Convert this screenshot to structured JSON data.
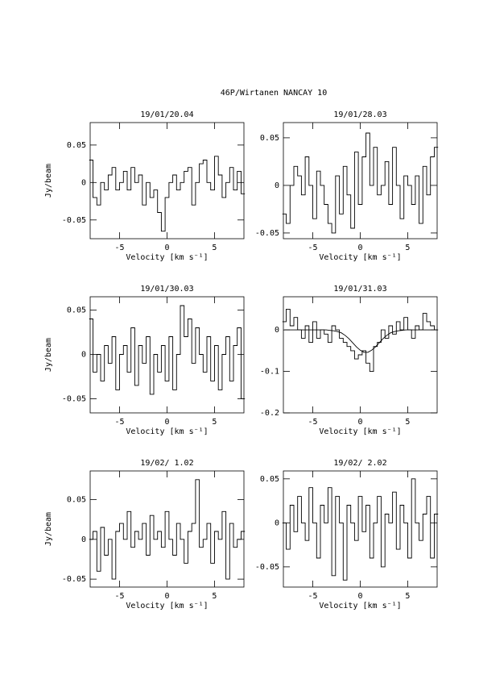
{
  "title": "46P/Wirtanen   NANCAY     10",
  "chart_data": [
    {
      "type": "line",
      "title": "19/01/20.04",
      "xlabel": "Velocity [km s⁻¹]",
      "ylabel": "Jy/beam",
      "x": [
        -8,
        -7.6,
        -7.2,
        -6.8,
        -6.4,
        -6,
        -5.6,
        -5.2,
        -4.8,
        -4.4,
        -4,
        -3.6,
        -3.2,
        -2.8,
        -2.4,
        -2,
        -1.6,
        -1.2,
        -0.8,
        -0.4,
        0,
        0.4,
        0.8,
        1.2,
        1.6,
        2,
        2.4,
        2.8,
        3.2,
        3.6,
        4,
        4.4,
        4.8,
        5.2,
        5.6,
        6,
        6.4,
        6.8,
        7.2,
        7.6,
        8
      ],
      "series": [
        {
          "color": "#000000",
          "drawstyle": "steps-mid",
          "values": [
            0.03,
            -0.02,
            -0.03,
            0.0,
            -0.01,
            0.01,
            0.02,
            -0.01,
            0.0,
            0.015,
            -0.01,
            0.02,
            0.0,
            0.01,
            -0.03,
            0.0,
            -0.02,
            -0.01,
            -0.04,
            -0.065,
            -0.02,
            0.0,
            0.01,
            -0.01,
            0.0,
            0.015,
            0.02,
            -0.03,
            0.0,
            0.025,
            0.03,
            0.0,
            -0.01,
            0.035,
            0.01,
            -0.02,
            0.0,
            0.02,
            -0.01,
            0.015,
            -0.015
          ]
        }
      ],
      "xlim": [
        -8.1,
        8.1
      ],
      "xticks": [
        -5,
        0,
        5
      ],
      "ylim": [
        -0.075,
        0.08
      ],
      "yticks": [
        -0.05,
        0,
        0.05
      ]
    },
    {
      "type": "line",
      "title": "19/01/28.03",
      "xlabel": "Velocity [km s⁻¹]",
      "x": [
        -8,
        -7.6,
        -7.2,
        -6.8,
        -6.4,
        -6,
        -5.6,
        -5.2,
        -4.8,
        -4.4,
        -4,
        -3.6,
        -3.2,
        -2.8,
        -2.4,
        -2,
        -1.6,
        -1.2,
        -0.8,
        -0.4,
        0,
        0.4,
        0.8,
        1.2,
        1.6,
        2,
        2.4,
        2.8,
        3.2,
        3.6,
        4,
        4.4,
        4.8,
        5.2,
        5.6,
        6,
        6.4,
        6.8,
        7.2,
        7.6,
        8
      ],
      "series": [
        {
          "color": "#000000",
          "drawstyle": "steps-mid",
          "values": [
            -0.03,
            -0.04,
            0.0,
            0.02,
            0.01,
            -0.01,
            0.03,
            0.0,
            -0.035,
            0.015,
            0.0,
            -0.02,
            -0.04,
            -0.05,
            0.01,
            -0.03,
            0.02,
            -0.01,
            -0.045,
            0.035,
            -0.02,
            0.03,
            0.055,
            0.0,
            0.04,
            -0.01,
            0.0,
            0.025,
            -0.02,
            0.04,
            0.0,
            -0.035,
            0.01,
            0.0,
            -0.02,
            0.01,
            -0.04,
            0.02,
            -0.01,
            0.03,
            0.04
          ]
        }
      ],
      "xlim": [
        -8.1,
        8.1
      ],
      "xticks": [
        -5,
        0,
        5
      ],
      "ylim": [
        -0.056,
        0.066
      ],
      "yticks": [
        -0.05,
        0,
        0.05
      ]
    },
    {
      "type": "line",
      "title": "19/01/30.03",
      "xlabel": "Velocity [km s⁻¹]",
      "ylabel": "Jy/beam",
      "x": [
        -8,
        -7.6,
        -7.2,
        -6.8,
        -6.4,
        -6,
        -5.6,
        -5.2,
        -4.8,
        -4.4,
        -4,
        -3.6,
        -3.2,
        -2.8,
        -2.4,
        -2,
        -1.6,
        -1.2,
        -0.8,
        -0.4,
        0,
        0.4,
        0.8,
        1.2,
        1.6,
        2,
        2.4,
        2.8,
        3.2,
        3.6,
        4,
        4.4,
        4.8,
        5.2,
        5.6,
        6,
        6.4,
        6.8,
        7.2,
        7.6,
        8
      ],
      "series": [
        {
          "color": "#000000",
          "drawstyle": "steps-mid",
          "values": [
            0.04,
            -0.02,
            0.0,
            -0.03,
            0.01,
            -0.01,
            0.02,
            -0.04,
            0.0,
            0.01,
            -0.02,
            0.03,
            -0.035,
            0.01,
            -0.01,
            0.02,
            -0.045,
            0.0,
            -0.02,
            0.01,
            -0.03,
            0.02,
            -0.04,
            0.0,
            0.055,
            0.02,
            0.04,
            -0.01,
            0.03,
            0.0,
            -0.02,
            0.02,
            -0.03,
            0.01,
            -0.04,
            0.0,
            0.02,
            -0.03,
            0.01,
            0.03,
            -0.05
          ]
        }
      ],
      "xlim": [
        -8.1,
        8.1
      ],
      "xticks": [
        -5,
        0,
        5
      ],
      "ylim": [
        -0.066,
        0.065
      ],
      "yticks": [
        -0.05,
        0,
        0.05
      ]
    },
    {
      "type": "line",
      "title": "19/01/31.03",
      "xlabel": "Velocity [km s⁻¹]",
      "x": [
        -8,
        -7.6,
        -7.2,
        -6.8,
        -6.4,
        -6,
        -5.6,
        -5.2,
        -4.8,
        -4.4,
        -4,
        -3.6,
        -3.2,
        -2.8,
        -2.4,
        -2,
        -1.6,
        -1.2,
        -0.8,
        -0.4,
        0,
        0.4,
        0.8,
        1.2,
        1.6,
        2,
        2.4,
        2.8,
        3.2,
        3.6,
        4,
        4.4,
        4.8,
        5.2,
        5.6,
        6,
        6.4,
        6.8,
        7.2,
        7.6,
        8
      ],
      "series": [
        {
          "color": "#000000",
          "drawstyle": "steps-mid",
          "values": [
            0.02,
            0.05,
            0.01,
            0.03,
            0.0,
            -0.02,
            0.01,
            -0.03,
            0.02,
            -0.02,
            0.0,
            -0.01,
            -0.03,
            0.01,
            0.0,
            -0.02,
            -0.03,
            -0.04,
            -0.05,
            -0.07,
            -0.06,
            -0.05,
            -0.08,
            -0.1,
            -0.04,
            -0.03,
            0.0,
            -0.02,
            0.01,
            -0.01,
            0.02,
            0.0,
            0.03,
            0.0,
            -0.02,
            0.01,
            0.0,
            0.04,
            0.02,
            0.01,
            0.0
          ]
        },
        {
          "color": "#000000",
          "drawstyle": "default",
          "values": [
            0,
            0,
            0,
            0,
            0,
            0,
            0,
            0,
            0,
            0,
            0,
            0,
            -0.001,
            -0.002,
            -0.004,
            -0.007,
            -0.013,
            -0.021,
            -0.031,
            -0.041,
            -0.049,
            -0.054,
            -0.054,
            -0.049,
            -0.041,
            -0.031,
            -0.021,
            -0.013,
            -0.007,
            -0.004,
            -0.002,
            -0.001,
            0,
            0,
            0,
            0,
            0,
            0,
            0,
            0,
            0
          ]
        }
      ],
      "xlim": [
        -8.1,
        8.1
      ],
      "xticks": [
        -5,
        0,
        5
      ],
      "ylim": [
        -0.2,
        0.08
      ],
      "yticks": [
        -0.2,
        -0.1,
        0
      ]
    },
    {
      "type": "line",
      "title": "19/02/ 1.02",
      "xlabel": "Velocity [km s⁻¹]",
      "ylabel": "Jy/beam",
      "x": [
        -8,
        -7.6,
        -7.2,
        -6.8,
        -6.4,
        -6,
        -5.6,
        -5.2,
        -4.8,
        -4.4,
        -4,
        -3.6,
        -3.2,
        -2.8,
        -2.4,
        -2,
        -1.6,
        -1.2,
        -0.8,
        -0.4,
        0,
        0.4,
        0.8,
        1.2,
        1.6,
        2,
        2.4,
        2.8,
        3.2,
        3.6,
        4,
        4.4,
        4.8,
        5.2,
        5.6,
        6,
        6.4,
        6.8,
        7.2,
        7.6,
        8
      ],
      "series": [
        {
          "color": "#000000",
          "drawstyle": "steps-mid",
          "values": [
            0.0,
            0.01,
            -0.04,
            0.015,
            -0.02,
            0.0,
            -0.05,
            0.01,
            0.02,
            0.0,
            0.035,
            -0.01,
            0.01,
            0.0,
            0.02,
            -0.02,
            0.03,
            0.0,
            0.01,
            -0.01,
            0.035,
            0.0,
            -0.02,
            0.02,
            0.0,
            -0.03,
            0.01,
            0.02,
            0.075,
            -0.01,
            0.0,
            0.02,
            -0.03,
            0.01,
            0.0,
            0.035,
            -0.05,
            0.02,
            -0.01,
            0.0,
            0.01
          ]
        }
      ],
      "xlim": [
        -8.1,
        8.1
      ],
      "xticks": [
        -5,
        0,
        5
      ],
      "ylim": [
        -0.06,
        0.086
      ],
      "yticks": [
        -0.05,
        0,
        0.05
      ]
    },
    {
      "type": "line",
      "title": "19/02/ 2.02",
      "xlabel": "Velocity [km s⁻¹]",
      "x": [
        -8,
        -7.6,
        -7.2,
        -6.8,
        -6.4,
        -6,
        -5.6,
        -5.2,
        -4.8,
        -4.4,
        -4,
        -3.6,
        -3.2,
        -2.8,
        -2.4,
        -2,
        -1.6,
        -1.2,
        -0.8,
        -0.4,
        0,
        0.4,
        0.8,
        1.2,
        1.6,
        2,
        2.4,
        2.8,
        3.2,
        3.6,
        4,
        4.4,
        4.8,
        5.2,
        5.6,
        6,
        6.4,
        6.8,
        7.2,
        7.6,
        8
      ],
      "series": [
        {
          "color": "#000000",
          "drawstyle": "steps-mid",
          "values": [
            0.0,
            -0.03,
            0.02,
            -0.01,
            0.03,
            0.0,
            -0.02,
            0.04,
            0.0,
            -0.04,
            0.02,
            0.0,
            0.04,
            -0.06,
            0.03,
            0.0,
            -0.065,
            0.02,
            0.0,
            -0.02,
            0.03,
            -0.01,
            0.02,
            -0.04,
            0.0,
            0.03,
            -0.05,
            0.01,
            0.0,
            0.035,
            -0.03,
            0.02,
            0.0,
            -0.04,
            0.05,
            0.0,
            -0.02,
            0.01,
            0.03,
            -0.04,
            0.01
          ]
        }
      ],
      "xlim": [
        -8.1,
        8.1
      ],
      "xticks": [
        -5,
        0,
        5
      ],
      "ylim": [
        -0.073,
        0.059
      ],
      "yticks": [
        -0.05,
        0,
        0.05
      ]
    }
  ]
}
